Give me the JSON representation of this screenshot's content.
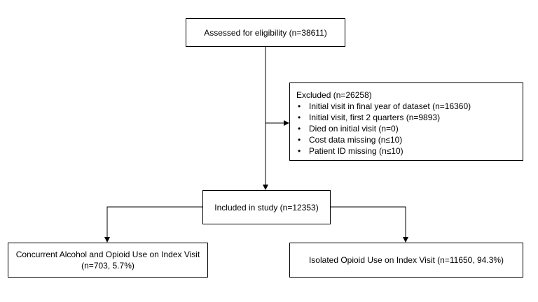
{
  "flowchart": {
    "assessed": {
      "text": "Assessed for eligibility (n=38611)"
    },
    "excluded": {
      "title": "Excluded (n=26258)",
      "items": [
        "Initial visit in final year of dataset (n=16360)",
        "Initial visit, first 2 quarters (n=9893)",
        "Died on initial visit (n=0)",
        "Cost data missing (n≤10)",
        "Patient ID missing (n≤10)"
      ]
    },
    "included": {
      "text": "Included in study (n=12353)"
    },
    "concurrent": {
      "text": "Concurrent Alcohol and Opioid Use on Index Visit (n=703, 5.7%)"
    },
    "isolated": {
      "text": "Isolated Opioid Use on Index Visit (n=11650, 94.3%)"
    }
  },
  "colors": {
    "line": "#000000",
    "box_border": "#000000",
    "background": "#ffffff"
  }
}
